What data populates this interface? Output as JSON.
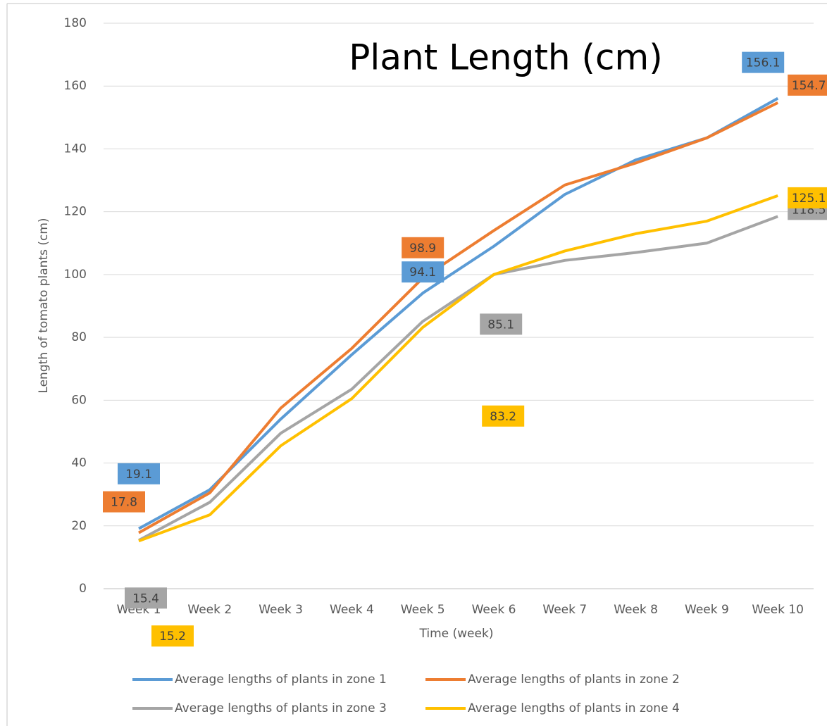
{
  "chart_data": {
    "type": "line",
    "title": "Plant Length (cm)",
    "x_label": "Time (week)",
    "y_label": "Length of tomato plants (cm)",
    "categories": [
      "Week 1",
      "Week 2",
      "Week 3",
      "Week 4",
      "Week 5",
      "Week 6",
      "Week 7",
      "Week 8",
      "Week 9",
      "Week 10"
    ],
    "ylim": [
      0,
      180
    ],
    "yticks": [
      0,
      20,
      40,
      60,
      80,
      100,
      120,
      140,
      160,
      180
    ],
    "grid": true,
    "legend": "bottom",
    "series": [
      {
        "name": "Average lengths of plants in zone 1",
        "color": "#5b9bd5",
        "values": [
          19.1,
          31.5,
          54,
          74.5,
          94.1,
          109,
          125.5,
          136.5,
          143.5,
          156.1
        ]
      },
      {
        "name": "Average lengths of plants in zone 2",
        "color": "#ed7d31",
        "values": [
          17.8,
          30.5,
          57.5,
          76.5,
          98.9,
          114,
          128.5,
          135.5,
          143.5,
          154.7
        ]
      },
      {
        "name": "Average lengths of plants in zone 3",
        "color": "#a5a5a5",
        "values": [
          15.4,
          27.5,
          49.5,
          63.5,
          85.1,
          100,
          104.5,
          107,
          110,
          118.5
        ]
      },
      {
        "name": "Average lengths of plants in zone 4",
        "color": "#ffc000",
        "values": [
          15.2,
          23.5,
          45.5,
          60.5,
          83.2,
          100,
          107.5,
          113,
          117,
          125.1
        ]
      }
    ]
  }
}
